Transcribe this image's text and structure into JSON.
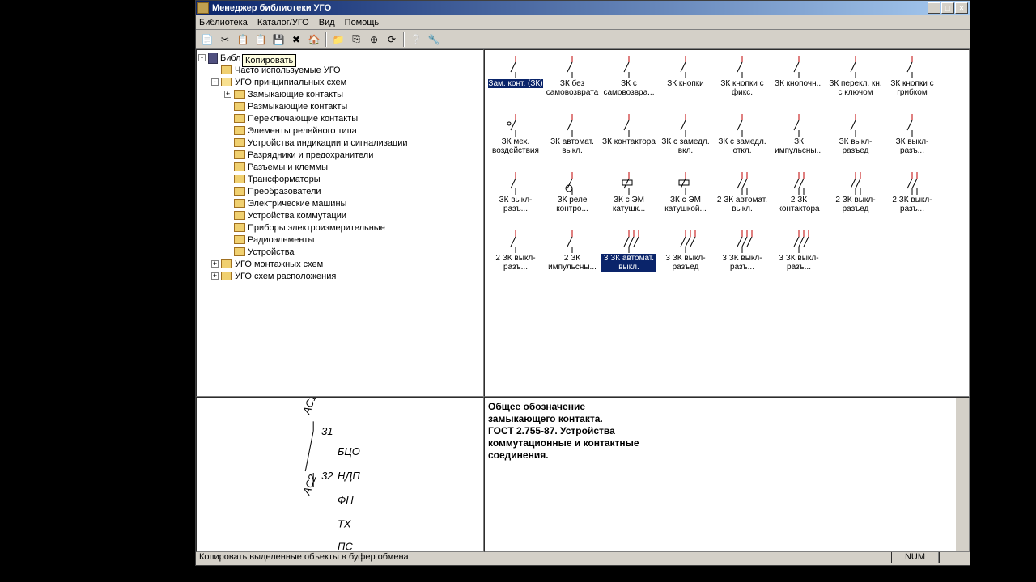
{
  "window": {
    "title": "Менеджер библиотеки УГО",
    "min": "_",
    "max": "□",
    "close": "×"
  },
  "menu": [
    "Библиотека",
    "Каталог/УГО",
    "Вид",
    "Помощь"
  ],
  "toolbar_icons": [
    "📄",
    "✂",
    "📋",
    "📋",
    "💾",
    "✖",
    "🏠",
    "|",
    "📁",
    "⎘",
    "⊕",
    "⟳",
    "|",
    "❔",
    "🔧"
  ],
  "tooltip": "Копировать",
  "tree": {
    "root": "Библ",
    "items": [
      {
        "level": 1,
        "toggle": "",
        "label": "Часто используемые УГО",
        "open": false
      },
      {
        "level": 1,
        "toggle": "-",
        "label": "УГО принципиальных схем",
        "open": true
      },
      {
        "level": 2,
        "toggle": "+",
        "label": "Замыкающие контакты"
      },
      {
        "level": 2,
        "toggle": "",
        "label": "Размыкающие контакты"
      },
      {
        "level": 2,
        "toggle": "",
        "label": "Переключающие контакты"
      },
      {
        "level": 2,
        "toggle": "",
        "label": "Элементы релейного типа"
      },
      {
        "level": 2,
        "toggle": "",
        "label": "Устройства индикации и сигнализации"
      },
      {
        "level": 2,
        "toggle": "",
        "label": "Разрядники и предохранители"
      },
      {
        "level": 2,
        "toggle": "",
        "label": "Разъемы и клеммы"
      },
      {
        "level": 2,
        "toggle": "",
        "label": "Трансформаторы"
      },
      {
        "level": 2,
        "toggle": "",
        "label": "Преобразователи"
      },
      {
        "level": 2,
        "toggle": "",
        "label": "Электрические машины"
      },
      {
        "level": 2,
        "toggle": "",
        "label": "Устройства коммутации"
      },
      {
        "level": 2,
        "toggle": "",
        "label": "Приборы электроизмерительные"
      },
      {
        "level": 2,
        "toggle": "",
        "label": "Радиоэлементы"
      },
      {
        "level": 2,
        "toggle": "",
        "label": "Устройства"
      },
      {
        "level": 1,
        "toggle": "+",
        "label": "УГО монтажных схем"
      },
      {
        "level": 1,
        "toggle": "+",
        "label": "УГО схем расположения"
      }
    ]
  },
  "symbols": [
    {
      "label": "Зам. конт. (ЗК)",
      "sel": true
    },
    {
      "label": "ЗК без самовозврата"
    },
    {
      "label": "ЗК с самовозвра..."
    },
    {
      "label": "ЗК кнопки"
    },
    {
      "label": "ЗК кнопки с фикс."
    },
    {
      "label": "ЗК кнопочн..."
    },
    {
      "label": "ЗК перекл. кн. с ключом"
    },
    {
      "label": "ЗК кнопки с грибком"
    },
    {
      "label": "ЗК мех. воздействия"
    },
    {
      "label": "ЗК автомат. выкл."
    },
    {
      "label": "ЗК контактора"
    },
    {
      "label": "ЗК с замедл. вкл."
    },
    {
      "label": "ЗК с замедл. откл."
    },
    {
      "label": "ЗК импульсны..."
    },
    {
      "label": "ЗК выкл-разъед"
    },
    {
      "label": "ЗК выкл-разъ..."
    },
    {
      "label": "ЗК выкл-разъ..."
    },
    {
      "label": "ЗК реле контро..."
    },
    {
      "label": "ЗК с ЭМ катушк..."
    },
    {
      "label": "ЗК с ЭМ катушкой..."
    },
    {
      "label": "2 ЗК автомат. выкл."
    },
    {
      "label": "2 ЗК контактора"
    },
    {
      "label": "2 ЗК выкл-разъед"
    },
    {
      "label": "2 ЗК выкл-разъ..."
    },
    {
      "label": "2 ЗК выкл-разъ..."
    },
    {
      "label": "2 ЗК импульсны..."
    },
    {
      "label": "3 ЗК автомат. выкл.",
      "sel": true
    },
    {
      "label": "3 ЗК выкл-разъед"
    },
    {
      "label": "3 ЗК выкл-разъ..."
    },
    {
      "label": "3 ЗК выкл-разъ..."
    }
  ],
  "description": "Общее обозначение\nзамыкающего контакта.\nГОСТ 2.755-87. Устройства\nкоммутационные и контактные\nсоединения.",
  "preview": {
    "labels": [
      "AC1",
      "31",
      "БЦО",
      "32",
      "НДП",
      "AC2",
      "ФН",
      "TX",
      "ПС"
    ]
  },
  "status": {
    "text": "Копировать выделенные объекты в буфер обмена",
    "num": "NUM"
  },
  "colors": {
    "titlebar_start": "#0a246a",
    "titlebar_end": "#a6caf0",
    "bg": "#d4d0c8",
    "sel": "#0a246a"
  }
}
